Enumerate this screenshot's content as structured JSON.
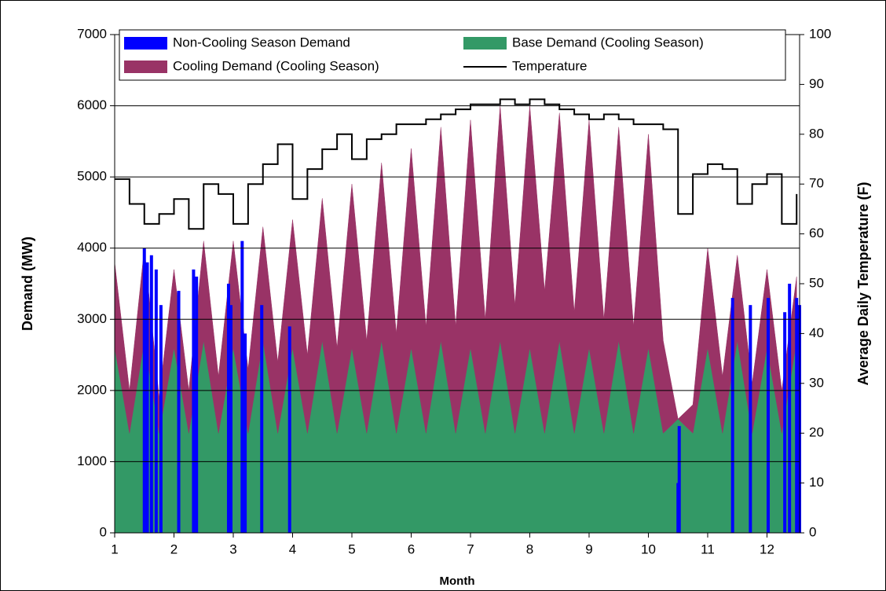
{
  "chart_data": {
    "type": "area",
    "x_label": "Month",
    "y_label": "Demand (MW)",
    "y2_label": "Average Daily Temperature (F)",
    "x": [
      1,
      1.25,
      1.5,
      1.75,
      2,
      2.25,
      2.5,
      2.75,
      3,
      3.25,
      3.5,
      3.75,
      4,
      4.25,
      4.5,
      4.75,
      5,
      5.25,
      5.5,
      5.75,
      6,
      6.25,
      6.5,
      6.75,
      7,
      7.25,
      7.5,
      7.75,
      8,
      8.25,
      8.5,
      8.75,
      9,
      9.25,
      9.5,
      9.75,
      10,
      10.25,
      10.5,
      10.75,
      11,
      11.25,
      11.5,
      11.75,
      12,
      12.25,
      12.5
    ],
    "series": [
      {
        "name": "Non-Cooling Season Demand",
        "color": "#0000ff",
        "type": "bar",
        "x": [
          1.5,
          1.55,
          1.62,
          1.7,
          1.78,
          2.08,
          2.33,
          2.38,
          2.92,
          2.96,
          3.15,
          3.2,
          3.48,
          3.95,
          10.5,
          10.52,
          11.42,
          11.72,
          12.02,
          12.3,
          12.38,
          12.5,
          12.55
        ],
        "values": [
          4000,
          3800,
          3900,
          3700,
          3200,
          3400,
          3700,
          3600,
          3500,
          3200,
          4100,
          2800,
          3200,
          2900,
          700,
          1500,
          3300,
          3200,
          3300,
          3100,
          3500,
          3300,
          3200
        ]
      },
      {
        "name": "Base Demand (Cooling Season)",
        "color": "#339966",
        "type": "area",
        "values": [
          2600,
          1400,
          2700,
          1400,
          2600,
          1400,
          2700,
          1400,
          2600,
          1400,
          2700,
          1400,
          2600,
          1400,
          2700,
          1400,
          2600,
          1400,
          2700,
          1400,
          2600,
          1400,
          2700,
          1400,
          2600,
          1400,
          2700,
          1400,
          2600,
          1400,
          2700,
          1400,
          2600,
          1400,
          2700,
          1400,
          2600,
          1400,
          1600,
          1400,
          2600,
          1400,
          2700,
          1400,
          2600,
          1400,
          2700
        ]
      },
      {
        "name": "Cooling Demand (Cooling Season)",
        "color": "#993366",
        "type": "area",
        "values": [
          1200,
          600,
          1300,
          500,
          1100,
          600,
          1400,
          800,
          1500,
          900,
          1600,
          1000,
          1800,
          1100,
          2000,
          1200,
          2300,
          1300,
          2500,
          1400,
          2800,
          1500,
          3000,
          1500,
          3200,
          1600,
          3300,
          1800,
          3400,
          2000,
          3200,
          1700,
          3200,
          1600,
          3000,
          1500,
          3000,
          1300,
          0,
          400,
          1400,
          800,
          1200,
          700,
          1100,
          600,
          900
        ]
      },
      {
        "name": "Temperature",
        "color": "#000000",
        "type": "line",
        "axis": "y2",
        "step": true,
        "values": [
          71,
          66,
          62,
          64,
          67,
          61,
          70,
          68,
          62,
          70,
          74,
          78,
          67,
          73,
          77,
          80,
          75,
          79,
          80,
          82,
          82,
          83,
          84,
          85,
          86,
          86,
          87,
          86,
          87,
          86,
          85,
          84,
          83,
          84,
          83,
          82,
          82,
          81,
          64,
          72,
          74,
          73,
          66,
          70,
          72,
          62,
          68
        ]
      }
    ],
    "xlim": [
      1,
      12.55
    ],
    "xticks": [
      1,
      2,
      3,
      4,
      5,
      6,
      7,
      8,
      9,
      10,
      11,
      12
    ],
    "ylim": [
      0,
      7000
    ],
    "yticks": [
      0,
      1000,
      2000,
      3000,
      4000,
      5000,
      6000,
      7000
    ],
    "y2lim": [
      0,
      100
    ],
    "y2ticks": [
      0,
      10,
      20,
      30,
      40,
      50,
      60,
      70,
      80,
      90,
      100
    ],
    "grid": true,
    "legend": "top"
  }
}
